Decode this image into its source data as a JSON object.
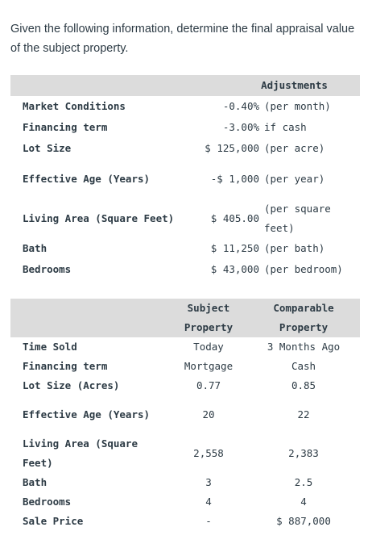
{
  "question": "Given the following information, determine the final appraisal value of the subject property.",
  "adjustments": {
    "header": "Adjustments",
    "rows": [
      {
        "label": "Market Conditions",
        "value": "-0.40%",
        "unit": "(per month)"
      },
      {
        "label": "Financing term",
        "value": "-3.00%",
        "unit": "if cash"
      },
      {
        "label": "Lot Size",
        "value": "$ 125,000",
        "unit": "(per acre)"
      },
      {
        "label": "Effective Age (Years)",
        "value": "-$ 1,000",
        "unit": "(per year)"
      },
      {
        "label": "Living Area (Square Feet)",
        "value": "$ 405.00",
        "unit": "(per square feet)"
      },
      {
        "label": "Bath",
        "value": "$ 11,250",
        "unit": "(per bath)"
      },
      {
        "label": "Bedrooms",
        "value": "$ 43,000",
        "unit": "(per bedroom)"
      }
    ]
  },
  "comparison": {
    "subject_header": "Subject Property",
    "comparable_header": "Comparable Property",
    "rows": [
      {
        "label": "Time Sold",
        "subject": "Today",
        "comparable": "3 Months Ago"
      },
      {
        "label": "Financing term",
        "subject": "Mortgage",
        "comparable": "Cash"
      },
      {
        "label": "Lot Size (Acres)",
        "subject": "0.77",
        "comparable": "0.85"
      },
      {
        "label": "Effective Age (Years)",
        "subject": "20",
        "comparable": "22"
      },
      {
        "label": "Living Area (Square Feet)",
        "subject": "2,558",
        "comparable": "2,383"
      },
      {
        "label": "Bath",
        "subject": "3",
        "comparable": "2.5"
      },
      {
        "label": "Bedrooms",
        "subject": "4",
        "comparable": "4"
      },
      {
        "label": "Sale Price",
        "subject": "-",
        "comparable": "$ 887,000"
      }
    ]
  }
}
